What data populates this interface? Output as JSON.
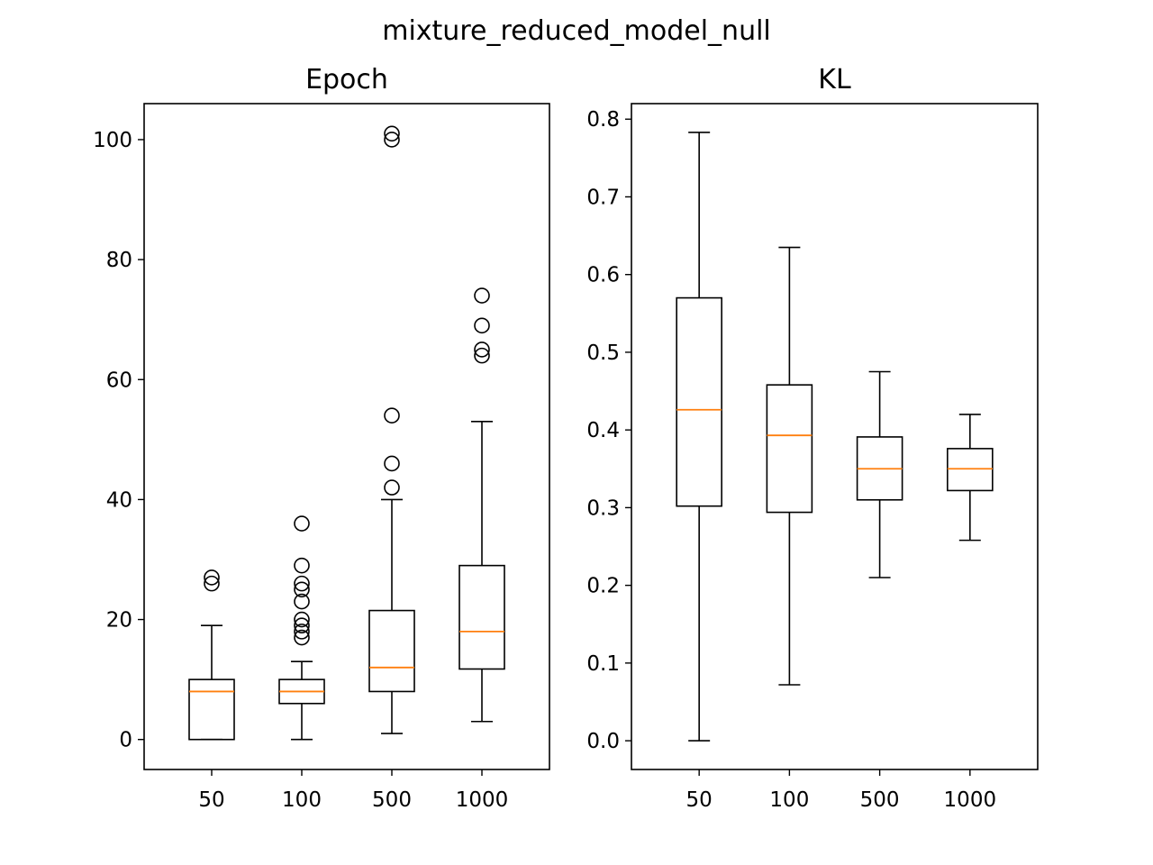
{
  "figure": {
    "suptitle": "mixture_reduced_model_null"
  },
  "chart_data": [
    {
      "type": "box",
      "title": "Epoch",
      "xlabel": "",
      "ylabel": "",
      "categories": [
        "50",
        "100",
        "500",
        "1000"
      ],
      "ylim": [
        -5,
        106
      ],
      "yticks": [
        0,
        20,
        40,
        60,
        80,
        100
      ],
      "ytick_labels": [
        "0",
        "20",
        "40",
        "60",
        "80",
        "100"
      ],
      "grid": false,
      "boxes": [
        {
          "category": "50",
          "whisker_low": 0,
          "q1": 0,
          "median": 8,
          "q3": 10,
          "whisker_high": 19,
          "outliers": [
            26,
            27
          ]
        },
        {
          "category": "100",
          "whisker_low": 0,
          "q1": 6,
          "median": 8,
          "q3": 10,
          "whisker_high": 13,
          "outliers": [
            17,
            18,
            19,
            20,
            23,
            25,
            26,
            29,
            36
          ]
        },
        {
          "category": "500",
          "whisker_low": 1,
          "q1": 8,
          "median": 12,
          "q3": 21.5,
          "whisker_high": 40,
          "outliers": [
            42,
            46,
            54,
            100,
            101
          ]
        },
        {
          "category": "1000",
          "whisker_low": 3,
          "q1": 11.75,
          "median": 18,
          "q3": 29,
          "whisker_high": 53,
          "outliers": [
            64,
            65,
            69,
            74
          ]
        }
      ]
    },
    {
      "type": "box",
      "title": "KL",
      "xlabel": "",
      "ylabel": "",
      "categories": [
        "50",
        "100",
        "500",
        "1000"
      ],
      "ylim": [
        -0.037,
        0.82
      ],
      "yticks": [
        0.0,
        0.1,
        0.2,
        0.3,
        0.4,
        0.5,
        0.6,
        0.7,
        0.8
      ],
      "ytick_labels": [
        "0.0",
        "0.1",
        "0.2",
        "0.3",
        "0.4",
        "0.5",
        "0.6",
        "0.7",
        "0.8"
      ],
      "grid": false,
      "boxes": [
        {
          "category": "50",
          "whisker_low": 0.0,
          "q1": 0.302,
          "median": 0.426,
          "q3": 0.57,
          "whisker_high": 0.783,
          "outliers": []
        },
        {
          "category": "100",
          "whisker_low": 0.072,
          "q1": 0.294,
          "median": 0.393,
          "q3": 0.458,
          "whisker_high": 0.635,
          "outliers": []
        },
        {
          "category": "500",
          "whisker_low": 0.21,
          "q1": 0.31,
          "median": 0.35,
          "q3": 0.391,
          "whisker_high": 0.475,
          "outliers": []
        },
        {
          "category": "1000",
          "whisker_low": 0.258,
          "q1": 0.322,
          "median": 0.35,
          "q3": 0.376,
          "whisker_high": 0.42,
          "outliers": []
        }
      ]
    }
  ],
  "colors": {
    "median": "#ff7f0e",
    "box": "#000000",
    "background": "#ffffff"
  }
}
